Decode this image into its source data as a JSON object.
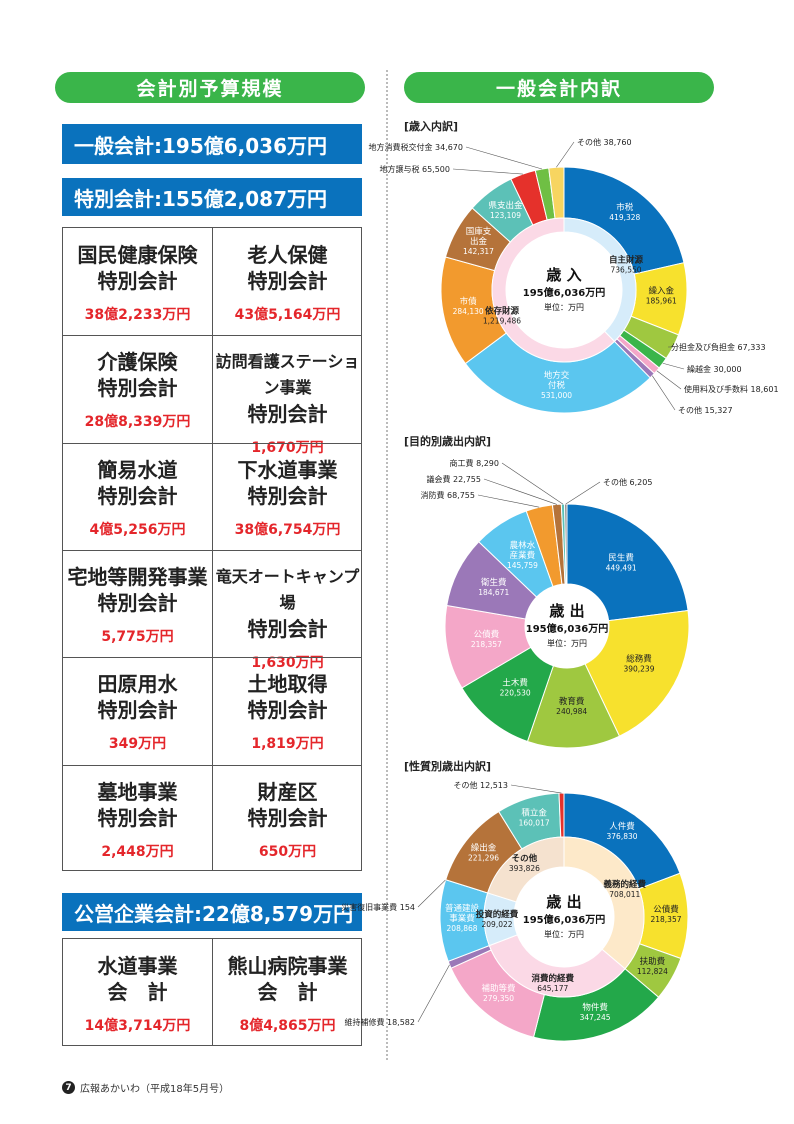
{
  "left_heading": "会計別予算規模",
  "right_heading": "一般会計内訳",
  "general_account": "一般会計:195億6,036万円",
  "special_account": "特別会計:155億2,087万円",
  "special_accounts": [
    {
      "name1": "国民健康保険",
      "name2": "特別会計",
      "amount": "38億2,233万円"
    },
    {
      "name1": "老人保健",
      "name2": "特別会計",
      "amount": "43億5,164万円"
    },
    {
      "name1": "介護保険",
      "name2": "特別会計",
      "amount": "28億8,339万円"
    },
    {
      "name1": "訪問看護ステーション事業",
      "name2": "特別会計",
      "amount": "1,670万円"
    },
    {
      "name1": "簡易水道",
      "name2": "特別会計",
      "amount": "4億5,256万円"
    },
    {
      "name1": "下水道事業",
      "name2": "特別会計",
      "amount": "38億6,754万円"
    },
    {
      "name1": "宅地等開発事業",
      "name2": "特別会計",
      "amount": "5,775万円"
    },
    {
      "name1": "竜天オートキャンプ場",
      "name2": "特別会計",
      "amount": "1,630万円"
    },
    {
      "name1": "田原用水",
      "name2": "特別会計",
      "amount": "349万円"
    },
    {
      "name1": "土地取得",
      "name2": "特別会計",
      "amount": "1,819万円"
    },
    {
      "name1": "墓地事業",
      "name2": "特別会計",
      "amount": "2,448万円"
    },
    {
      "name1": "財産区",
      "name2": "特別会計",
      "amount": "650万円"
    }
  ],
  "public_enterprise": "公営企業会計:22億8,579万円",
  "public_accounts": [
    {
      "name1": "水道事業",
      "name2": "会　計",
      "amount": "14億3,714万円"
    },
    {
      "name1": "熊山病院事業",
      "name2": "会　計",
      "amount": "8億4,865万円"
    }
  ],
  "footer": {
    "page": "7",
    "text": "広報あかいわ（平成18年5月号）"
  },
  "chart_data": [
    {
      "type": "pie",
      "title": "[歳入内訳]",
      "center": {
        "label": "歳 入",
        "total": "195億6,036万円",
        "unit": "単位：万円"
      },
      "series": [
        {
          "name": "市税",
          "value": 419328,
          "color": "#0a72bd"
        },
        {
          "name": "繰入金",
          "value": 185961,
          "color": "#f7e12d"
        },
        {
          "name": "分担金及び負担金",
          "value": 67333,
          "color": "#9fc840"
        },
        {
          "name": "繰越金",
          "value": 30000,
          "color": "#3ab54a"
        },
        {
          "name": "使用料及び手数料",
          "value": 18601,
          "color": "#f4a7c8"
        },
        {
          "name": "その他",
          "value": 15327,
          "color": "#9b78b8"
        },
        {
          "name": "地方交付税",
          "value": 531000,
          "color": "#5bc6ef"
        },
        {
          "name": "市債",
          "value": 284130,
          "color": "#f29a2e"
        },
        {
          "name": "国庫支出金",
          "value": 142317,
          "color": "#b5733a"
        },
        {
          "name": "県支出金",
          "value": 123109,
          "color": "#5cc1b7"
        },
        {
          "name": "地方譲与税",
          "value": 65500,
          "color": "#e5312b"
        },
        {
          "name": "地方消費税交付金",
          "value": 34670,
          "color": "#6fbf44"
        },
        {
          "name": "その他",
          "value": 38760,
          "color": "#f7d560"
        }
      ],
      "inner": [
        {
          "name": "自主財源",
          "value": 736550,
          "color": "#d6ecfa"
        },
        {
          "name": "依存財源",
          "value": 1219486,
          "color": "#fbd9e6"
        }
      ]
    },
    {
      "type": "pie",
      "title": "[目的別歳出内訳]",
      "center": {
        "label": "歳 出",
        "total": "195億6,036万円",
        "unit": "単位：万円"
      },
      "series": [
        {
          "name": "民生費",
          "value": 449491,
          "color": "#0a72bd"
        },
        {
          "name": "総務費",
          "value": 390239,
          "color": "#f7e12d"
        },
        {
          "name": "教育費",
          "value": 240984,
          "color": "#9fc840"
        },
        {
          "name": "土木費",
          "value": 220530,
          "color": "#23a84a"
        },
        {
          "name": "公債費",
          "value": 218357,
          "color": "#f4a7c8"
        },
        {
          "name": "衛生費",
          "value": 184671,
          "color": "#9b78b8"
        },
        {
          "name": "農林水産業費",
          "value": 145759,
          "color": "#5bc6ef"
        },
        {
          "name": "消防費",
          "value": 68755,
          "color": "#f29a2e"
        },
        {
          "name": "議会費",
          "value": 22755,
          "color": "#b5733a"
        },
        {
          "name": "商工費",
          "value": 8290,
          "color": "#5cc1b7"
        },
        {
          "name": "その他",
          "value": 6205,
          "color": "#888888"
        }
      ]
    },
    {
      "type": "pie",
      "title": "[性質別歳出内訳]",
      "center": {
        "label": "歳 出",
        "total": "195億6,036万円",
        "unit": "単位：万円"
      },
      "series": [
        {
          "name": "人件費",
          "value": 376830,
          "color": "#0a72bd"
        },
        {
          "name": "公債費",
          "value": 218357,
          "color": "#f7e12d"
        },
        {
          "name": "扶助費",
          "value": 112824,
          "color": "#9fc840"
        },
        {
          "name": "物件費",
          "value": 347245,
          "color": "#23a84a"
        },
        {
          "name": "補助等費",
          "value": 279350,
          "color": "#f4a7c8"
        },
        {
          "name": "維持補修費",
          "value": 18582,
          "color": "#9b78b8"
        },
        {
          "name": "普通建設事業費",
          "value": 208868,
          "color": "#5bc6ef"
        },
        {
          "name": "災害復旧事業費",
          "value": 154,
          "color": "#f29a2e"
        },
        {
          "name": "繰出金",
          "value": 221296,
          "color": "#b5733a"
        },
        {
          "name": "積立金",
          "value": 160017,
          "color": "#5cc1b7"
        },
        {
          "name": "その他",
          "value": 12513,
          "color": "#e5312b"
        }
      ],
      "inner": [
        {
          "name": "義務的経費",
          "value": 708011,
          "color": "#fde9c9"
        },
        {
          "name": "消費的経費",
          "value": 645177,
          "color": "#fbd9e6"
        },
        {
          "name": "投資的経費",
          "value": 209022,
          "color": "#d6ecfa"
        },
        {
          "name": "その他",
          "value": 393826,
          "color": "#f5e2cf"
        }
      ]
    }
  ]
}
